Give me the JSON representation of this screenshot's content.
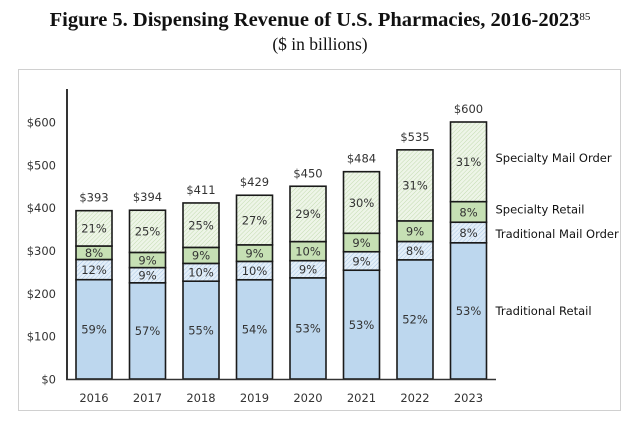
{
  "chart_data": {
    "type": "bar",
    "stacked": true,
    "title": "Figure 5. Dispensing Revenue of U.S. Pharmacies, 2016-2023",
    "title_footnote": "85",
    "subtitle": "($ in billions)",
    "xlabel": "",
    "ylabel": "",
    "ylim": [
      0,
      600
    ],
    "yticks": [
      0,
      100,
      200,
      300,
      400,
      500,
      600
    ],
    "ytick_labels": [
      "$0",
      "$100",
      "$200",
      "$300",
      "$400",
      "$500",
      "$600"
    ],
    "grid": false,
    "legend_position": "right (inline labels beside last bar)",
    "categories": [
      "2016",
      "2017",
      "2018",
      "2019",
      "2020",
      "2021",
      "2022",
      "2023"
    ],
    "totals": [
      393,
      394,
      411,
      429,
      450,
      484,
      535,
      600
    ],
    "total_labels": [
      "$393",
      "$394",
      "$411",
      "$429",
      "$450",
      "$484",
      "$535",
      "$600"
    ],
    "series": [
      {
        "name": "Traditional Retail",
        "share_percent": [
          59,
          57,
          55,
          54,
          53,
          53,
          52,
          53
        ],
        "color": "#bdd7ee",
        "pattern": "solid"
      },
      {
        "name": "Traditional Mail Order",
        "share_percent": [
          12,
          9,
          10,
          10,
          9,
          9,
          8,
          8
        ],
        "color": "#ddebf7",
        "pattern": "light-hatch-blue"
      },
      {
        "name": "Specialty Retail",
        "share_percent": [
          8,
          9,
          9,
          9,
          10,
          9,
          9,
          8
        ],
        "color": "#c6e0b4",
        "pattern": "solid"
      },
      {
        "name": "Specialty Mail Order",
        "share_percent": [
          21,
          25,
          25,
          27,
          29,
          30,
          31,
          31
        ],
        "color": "#e2efda",
        "pattern": "light-hatch-green"
      }
    ]
  }
}
